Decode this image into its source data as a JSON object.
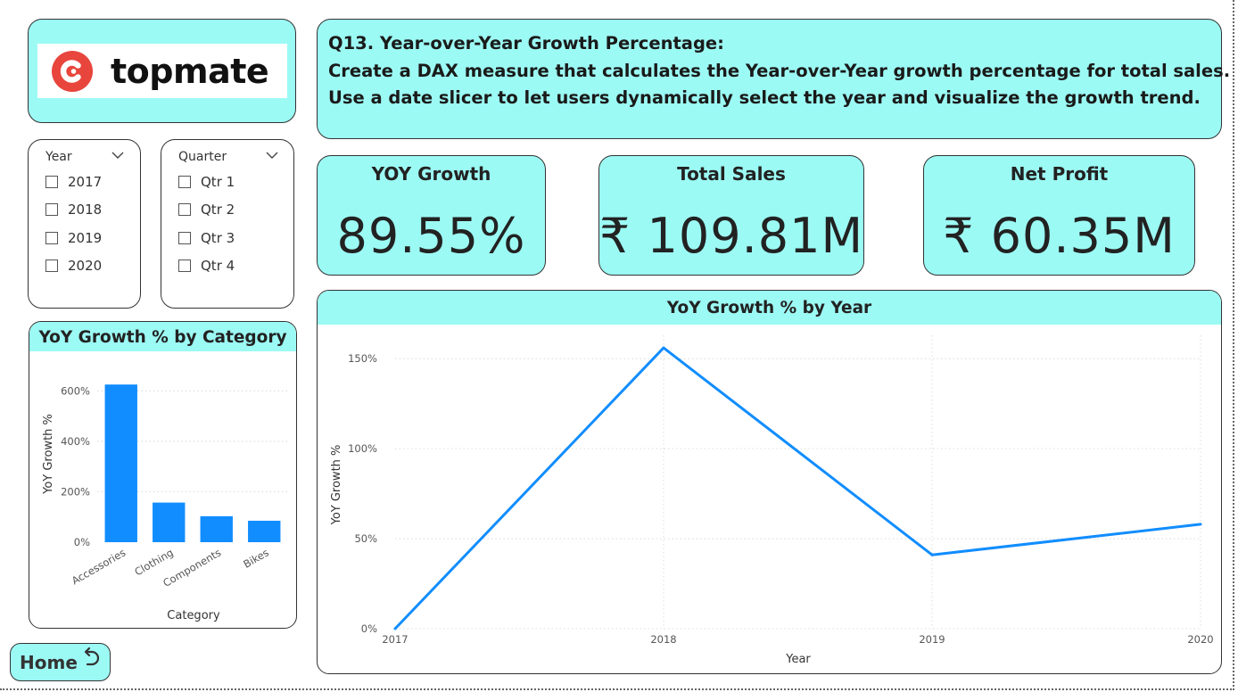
{
  "logo": {
    "text": "topmate",
    "brand_color": "#e8453c"
  },
  "question": {
    "lines": [
      "Q13. Year-over-Year Growth Percentage:",
      "Create a DAX measure that calculates the Year-over-Year growth percentage for total sales.",
      "Use a date slicer to let users dynamically select the year and visualize the growth trend."
    ]
  },
  "slicers": {
    "year": {
      "title": "Year",
      "items": [
        "2017",
        "2018",
        "2019",
        "2020"
      ]
    },
    "quarter": {
      "title": "Quarter",
      "items": [
        "Qtr 1",
        "Qtr 2",
        "Qtr 3",
        "Qtr 4"
      ]
    }
  },
  "kpis": {
    "yoy": {
      "title": "YOY Growth",
      "value": "89.55%"
    },
    "sales": {
      "title": "Total Sales",
      "value": "₹ 109.81M"
    },
    "profit": {
      "title": "Net Profit",
      "value": "₹ 60.35M"
    }
  },
  "colors": {
    "accent": "#9cfaf4",
    "series": "#118dff"
  },
  "chart_data": [
    {
      "type": "bar",
      "title": "YoY Growth % by Category",
      "xlabel": "Category",
      "ylabel": "YoY Growth %",
      "categories": [
        "Accessories",
        "Clothing",
        "Components",
        "Bikes"
      ],
      "values": [
        625,
        157,
        103,
        85
      ],
      "ylim": [
        0,
        700
      ],
      "yticks": [
        0,
        200,
        400,
        600
      ],
      "ytick_labels": [
        "0%",
        "200%",
        "400%",
        "600%"
      ],
      "grid": true
    },
    {
      "type": "line",
      "title": "YoY Growth % by Year",
      "xlabel": "Year",
      "ylabel": "YoY Growth %",
      "x": [
        "2017",
        "2018",
        "2019",
        "2020"
      ],
      "values": [
        0,
        156,
        41,
        58
      ],
      "ylim": [
        0,
        160
      ],
      "yticks": [
        0,
        50,
        100,
        150
      ],
      "ytick_labels": [
        "0%",
        "50%",
        "100%",
        "150%"
      ],
      "grid": true
    }
  ],
  "home": {
    "label": "Home",
    "icon": "return-arrow-icon"
  }
}
